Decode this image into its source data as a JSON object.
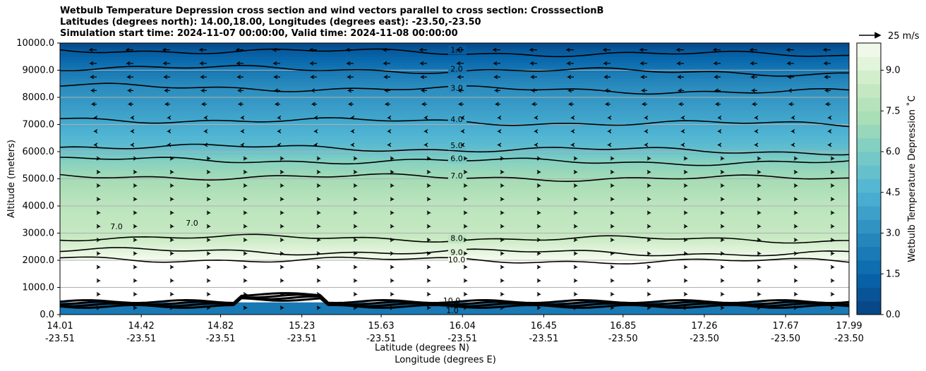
{
  "titles": {
    "line1": "Wetbulb Temperature Depression cross section and wind vectors parallel to cross section: CrosssectionB",
    "line2": "Latitudes (degrees north): 14.00,18.00, Longitudes (degrees east): -23.50,-23.50",
    "line3": "Simulation start time: 2024-11-07 00:00:00, Valid time: 2024-11-08 00:00:00"
  },
  "chart_data": {
    "type": "contourf",
    "title": "Wetbulb Temperature Depression cross section and wind vectors parallel to cross section: CrosssectionB",
    "ylabel": "Altitude (meters)",
    "xlabel_lat": "Latitude (degrees N)",
    "xlabel_lon": "Longitude (degrees E)",
    "ylim": [
      0,
      10000
    ],
    "yticks": [
      "0.0",
      "1000.0",
      "2000.0",
      "3000.0",
      "4000.0",
      "5000.0",
      "6000.0",
      "7000.0",
      "8000.0",
      "9000.0",
      "10000.0"
    ],
    "xlim": [
      14.01,
      17.99
    ],
    "xticks_lat": [
      "14.01",
      "14.42",
      "14.82",
      "15.23",
      "15.63",
      "16.04",
      "16.45",
      "16.85",
      "17.26",
      "17.67",
      "17.99"
    ],
    "xticks_lon": [
      "-23.51",
      "-23.51",
      "-23.51",
      "-23.51",
      "-23.51",
      "-23.51",
      "-23.51",
      "-23.50",
      "-23.50",
      "-23.50",
      "-23.50"
    ],
    "colorbar": {
      "label": "Wetbulb Temperature Depression ˚C",
      "range": [
        0,
        10
      ],
      "ticks": [
        "0.0",
        "1.5",
        "3.0",
        "4.5",
        "6.0",
        "7.5",
        "9.0"
      ]
    },
    "contour_levels": [
      {
        "label": "1.0",
        "alt": 9750
      },
      {
        "label": "2.0",
        "alt": 9100
      },
      {
        "label": "3.0",
        "alt": 8400
      },
      {
        "label": "4.0",
        "alt": 7200
      },
      {
        "label": "5.0",
        "alt": 6200
      },
      {
        "label": "6.0",
        "alt": 5700
      },
      {
        "label": "7.0",
        "alt": 5100
      },
      {
        "label": "8.0",
        "alt": 2850
      },
      {
        "label": "9.0",
        "alt": 2350
      },
      {
        "label": "10.0",
        "alt": 2050
      }
    ],
    "low_level_labels": [
      "7.0",
      "7.0",
      "10.0",
      "1.0",
      "1.0"
    ],
    "wind_reference": "25 m/s"
  }
}
